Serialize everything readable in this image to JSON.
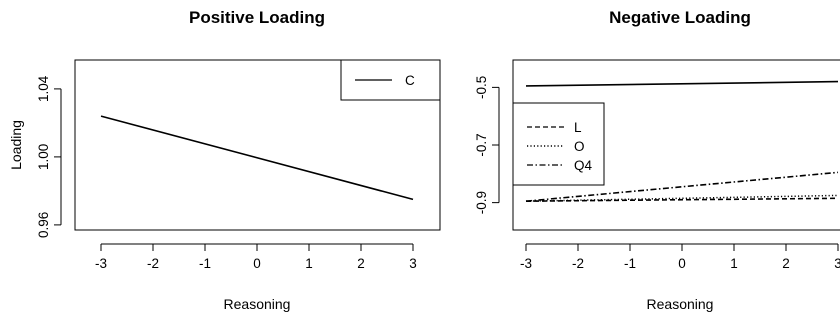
{
  "chart_data": [
    {
      "type": "line",
      "title": "Positive Loading",
      "xlabel": "Reasoning",
      "ylabel": "Loading",
      "xlim": [
        -3,
        3
      ],
      "ylim": [
        0.957,
        1.057
      ],
      "x_ticks": [
        -3,
        -2,
        -1,
        0,
        1,
        2,
        3
      ],
      "x_tick_labels": [
        "-3",
        "-2",
        "-1",
        "0",
        "1",
        "2",
        "3"
      ],
      "y_ticks": [
        0.96,
        1.0,
        1.04
      ],
      "y_tick_labels": [
        "0.96",
        "1.00",
        "1.04"
      ],
      "legend_position": "top-right",
      "grid": false,
      "series": [
        {
          "name": "C",
          "dash": "solid",
          "x": [
            -3,
            3
          ],
          "y": [
            1.024,
            0.975
          ]
        }
      ]
    },
    {
      "type": "line",
      "title": "Negative Loading",
      "xlabel": "Reasoning",
      "ylabel": "",
      "xlim": [
        -3,
        3
      ],
      "ylim": [
        -0.995,
        -0.405
      ],
      "x_ticks": [
        -3,
        -2,
        -1,
        0,
        1,
        2,
        3
      ],
      "x_tick_labels": [
        "-3",
        "-2",
        "-1",
        "0",
        "1",
        "2",
        "3"
      ],
      "y_ticks": [
        -0.5,
        -0.7,
        -0.9
      ],
      "y_tick_labels": [
        "-0.5",
        "-0.7",
        "-0.9"
      ],
      "legend_position": "left",
      "grid": false,
      "series": [
        {
          "name": "",
          "dash": "solid",
          "x": [
            -3,
            3
          ],
          "y": [
            -0.495,
            -0.48
          ]
        },
        {
          "name": "L",
          "dash": "dashed",
          "x": [
            -3,
            3
          ],
          "y": [
            -0.895,
            -0.885
          ]
        },
        {
          "name": "O",
          "dash": "dotted",
          "x": [
            -3,
            3
          ],
          "y": [
            -0.895,
            -0.875
          ]
        },
        {
          "name": "Q4",
          "dash": "dashdot",
          "x": [
            -3,
            3
          ],
          "y": [
            -0.895,
            -0.795
          ]
        }
      ]
    }
  ]
}
